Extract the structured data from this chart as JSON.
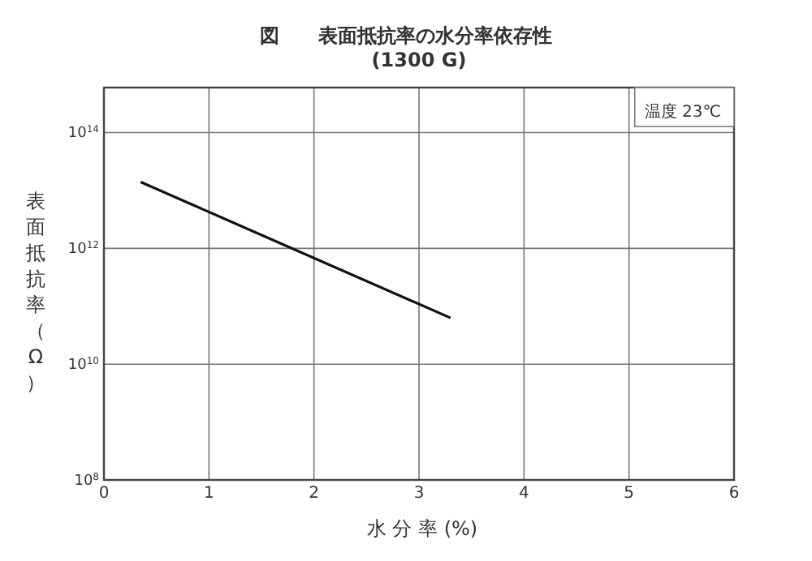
{
  "chart_data": {
    "type": "line",
    "title": "図　　表面抵抗率の水分率依存性",
    "subtitle": "(1300 G)",
    "xlabel": "水 分 率 (%)",
    "ylabel": "表面抵抗率（Ω）",
    "annotations": [
      "温度 23℃"
    ],
    "x": [
      0.35,
      3.3
    ],
    "series": [
      {
        "color": "#111111",
        "values": [
          14000000000000.0,
          63000000000.0
        ]
      }
    ],
    "xlim": [
      0,
      6
    ],
    "xticks": [
      0,
      1,
      2,
      3,
      4,
      5,
      6
    ],
    "ylim": [
      100000000.0,
      600000000000000.0
    ],
    "log": true,
    "yticks": [
      {
        "value": 100000000.0,
        "label": "10$^{8}$"
      },
      {
        "value": 10000000000.0,
        "label": "10$^{10}$"
      },
      {
        "value": 1000000000000.0,
        "label": "10$^{12}$"
      },
      {
        "value": 100000000000000.0,
        "label": "10$^{14}$"
      }
    ],
    "grid": true,
    "marker": "none",
    "line_style": "solid"
  }
}
